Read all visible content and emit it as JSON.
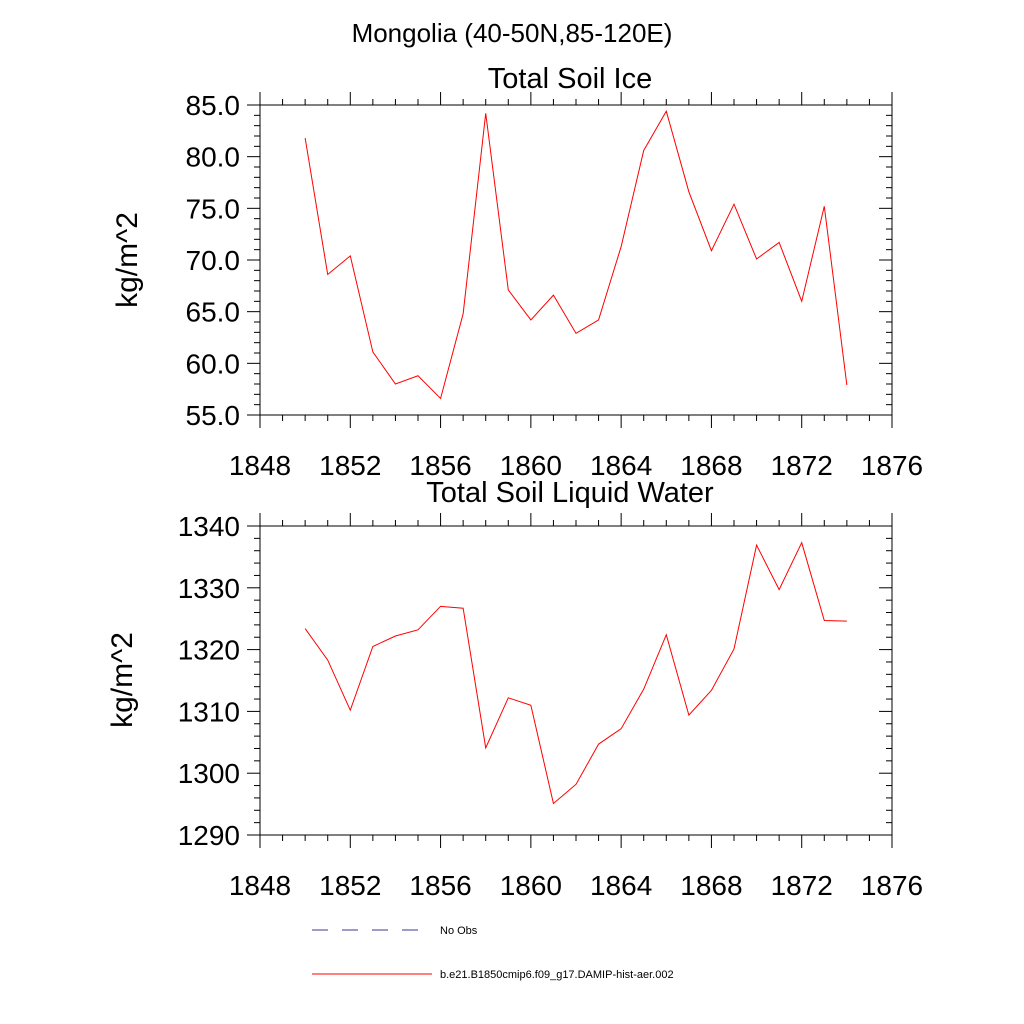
{
  "figure_title": "Mongolia (40-50N,85-120E)",
  "colors": {
    "series": "#ff0000",
    "no_obs": "#3a3a8c",
    "axis": "#000000"
  },
  "chart_data": [
    {
      "type": "line",
      "title": "Total Soil Ice",
      "ylabel": "kg/m^2",
      "xlabel": "",
      "xlim": [
        1848,
        1876
      ],
      "ylim": [
        55,
        85
      ],
      "x_ticks": [
        1848,
        1852,
        1856,
        1860,
        1864,
        1868,
        1872,
        1876
      ],
      "x_tick_labels": [
        "1848",
        "1852",
        "1856",
        "1860",
        "1864",
        "1868",
        "1872",
        "1876"
      ],
      "x_minor_step": 1,
      "y_ticks": [
        55,
        60,
        65,
        70,
        75,
        80,
        85
      ],
      "y_tick_labels": [
        "55.0",
        "60.0",
        "65.0",
        "70.0",
        "75.0",
        "80.0",
        "85.0"
      ],
      "y_minor_step": 1,
      "grid": false,
      "series": [
        {
          "name": "b.e21.B1850cmip6.f09_g17.DAMIP-hist-aer.002",
          "x": [
            1850,
            1851,
            1852,
            1853,
            1854,
            1855,
            1856,
            1857,
            1858,
            1859,
            1860,
            1861,
            1862,
            1863,
            1864,
            1865,
            1866,
            1867,
            1868,
            1869,
            1870,
            1871,
            1872,
            1873,
            1874
          ],
          "values": [
            81.8,
            68.6,
            70.4,
            61.1,
            58.0,
            58.8,
            56.6,
            64.8,
            84.2,
            67.1,
            64.2,
            66.6,
            62.9,
            64.2,
            71.3,
            80.6,
            84.4,
            76.6,
            70.9,
            75.4,
            70.1,
            71.7,
            66.0,
            75.2,
            57.9
          ]
        }
      ]
    },
    {
      "type": "line",
      "title": "Total Soil Liquid Water",
      "ylabel": "kg/m^2",
      "xlabel": "",
      "xlim": [
        1848,
        1876
      ],
      "ylim": [
        1290,
        1340
      ],
      "x_ticks": [
        1848,
        1852,
        1856,
        1860,
        1864,
        1868,
        1872,
        1876
      ],
      "x_tick_labels": [
        "1848",
        "1852",
        "1856",
        "1860",
        "1864",
        "1868",
        "1872",
        "1876"
      ],
      "x_minor_step": 1,
      "y_ticks": [
        1290,
        1300,
        1310,
        1320,
        1330,
        1340
      ],
      "y_tick_labels": [
        "1290",
        "1300",
        "1310",
        "1320",
        "1330",
        "1340"
      ],
      "y_minor_step": 2,
      "grid": false,
      "series": [
        {
          "name": "b.e21.B1850cmip6.f09_g17.DAMIP-hist-aer.002",
          "x": [
            1850,
            1851,
            1852,
            1853,
            1854,
            1855,
            1856,
            1857,
            1858,
            1859,
            1860,
            1861,
            1862,
            1863,
            1864,
            1865,
            1866,
            1867,
            1868,
            1869,
            1870,
            1871,
            1872,
            1873,
            1874
          ],
          "values": [
            1323.4,
            1318.3,
            1310.2,
            1320.5,
            1322.2,
            1323.2,
            1327.0,
            1326.7,
            1304.1,
            1312.2,
            1311.0,
            1295.1,
            1298.2,
            1304.7,
            1307.2,
            1313.6,
            1322.4,
            1309.4,
            1313.4,
            1320.1,
            1336.9,
            1329.7,
            1337.3,
            1324.7,
            1324.6
          ]
        }
      ]
    }
  ],
  "legend": {
    "placement": "bottom",
    "entries": [
      {
        "label": "No Obs",
        "style": "dashed",
        "color": "#3a3a8c"
      },
      {
        "label": "b.e21.B1850cmip6.f09_g17.DAMIP-hist-aer.002",
        "style": "solid",
        "color": "#ff0000"
      }
    ]
  }
}
